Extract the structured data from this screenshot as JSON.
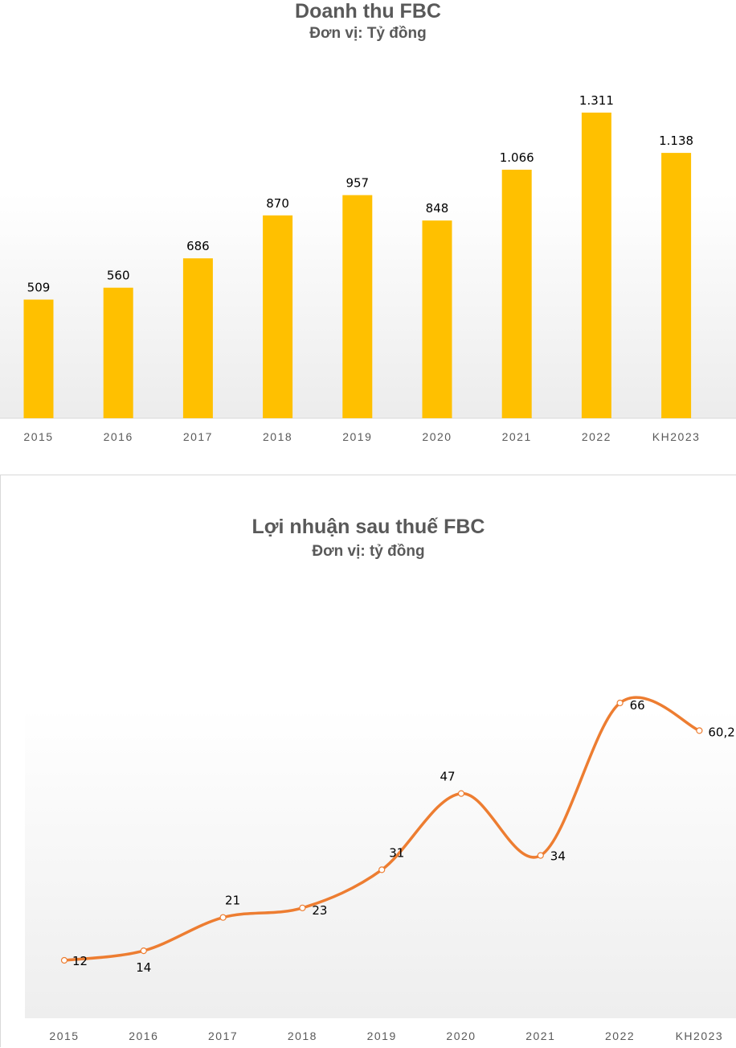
{
  "chart_data": [
    {
      "type": "bar",
      "title": "Doanh thu FBC",
      "subtitle": "Đơn vị: Tỷ đồng",
      "categories": [
        "2015",
        "2016",
        "2017",
        "2018",
        "2019",
        "2020",
        "2021",
        "2022",
        "KH2023"
      ],
      "values": [
        509,
        560,
        686,
        870,
        957,
        848,
        1066,
        1311,
        1138
      ],
      "data_labels": [
        "509",
        "560",
        "686",
        "870",
        "957",
        "848",
        "1.066",
        "1.311",
        "1.138"
      ],
      "ylim": [
        0,
        1311
      ],
      "grid": false,
      "color": "#ffc000"
    },
    {
      "type": "line",
      "title": "Lợi nhuận sau thuế FBC",
      "subtitle": "Đơn vị: tỷ đồng",
      "categories": [
        "2015",
        "2016",
        "2017",
        "2018",
        "2019",
        "2020",
        "2021",
        "2022",
        "KH2023"
      ],
      "values": [
        12,
        14,
        21,
        23,
        31,
        47,
        34,
        66,
        60.2
      ],
      "data_labels": [
        "12",
        "14",
        "21",
        "23",
        "31",
        "47",
        "34",
        "66",
        "60,2"
      ],
      "ylim": [
        0,
        66
      ],
      "smooth": true,
      "grid": false,
      "color": "#ed7d31"
    }
  ]
}
